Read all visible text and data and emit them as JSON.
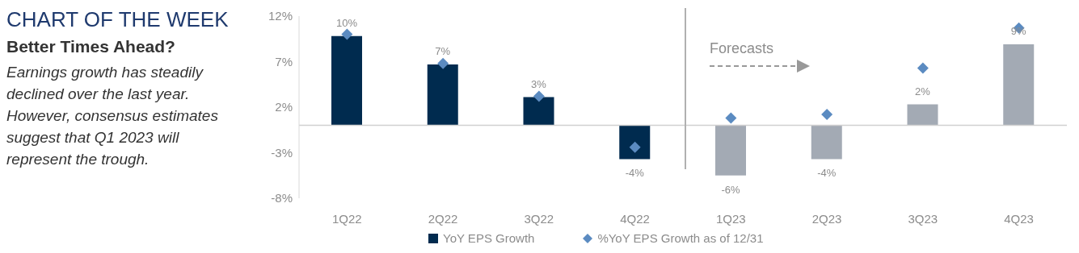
{
  "chart_data": {
    "type": "bar",
    "title": "CHART OF THE WEEK",
    "subtitle": "Better Times Ahead?",
    "annotations": [
      "Earnings growth has steadily declined over the last year. However, consensus estimates suggest that Q1 2023 will represent the trough.",
      "Forecasts"
    ],
    "categories": [
      "1Q22",
      "2Q22",
      "3Q22",
      "4Q22",
      "1Q23",
      "2Q23",
      "3Q23",
      "4Q23"
    ],
    "series": [
      {
        "name": "YoY EPS Growth",
        "color": "#002b4f",
        "colors": [
          "#002b4f",
          "#002b4f",
          "#002b4f",
          "#002b4f",
          "#a3aab4",
          "#a3aab4",
          "#a3aab4",
          "#a3aab4"
        ],
        "values": [
          9.8,
          6.7,
          3.1,
          -3.7,
          -5.5,
          -3.7,
          2.3,
          8.9
        ],
        "value_labels": [
          "10%",
          "7%",
          "3%",
          "-4%",
          "-6%",
          "-4%",
          "2%",
          "9%"
        ]
      },
      {
        "name": "%YoY EPS Growth as of 12/31",
        "type": "scatter",
        "color": "#5b8bc1",
        "marker": "diamond",
        "values": [
          10,
          6.8,
          3.2,
          -2.4,
          0.8,
          1.2,
          6.3,
          10.7
        ]
      }
    ],
    "ylim": [
      -8,
      12
    ],
    "yticks": [
      {
        "value": -8,
        "label": "-8%"
      },
      {
        "value": -3,
        "label": "-3%"
      },
      {
        "value": 2,
        "label": "2%"
      },
      {
        "value": 7,
        "label": "7%"
      },
      {
        "value": 12,
        "label": "12%"
      }
    ],
    "grid": false,
    "legend": "bottom"
  }
}
